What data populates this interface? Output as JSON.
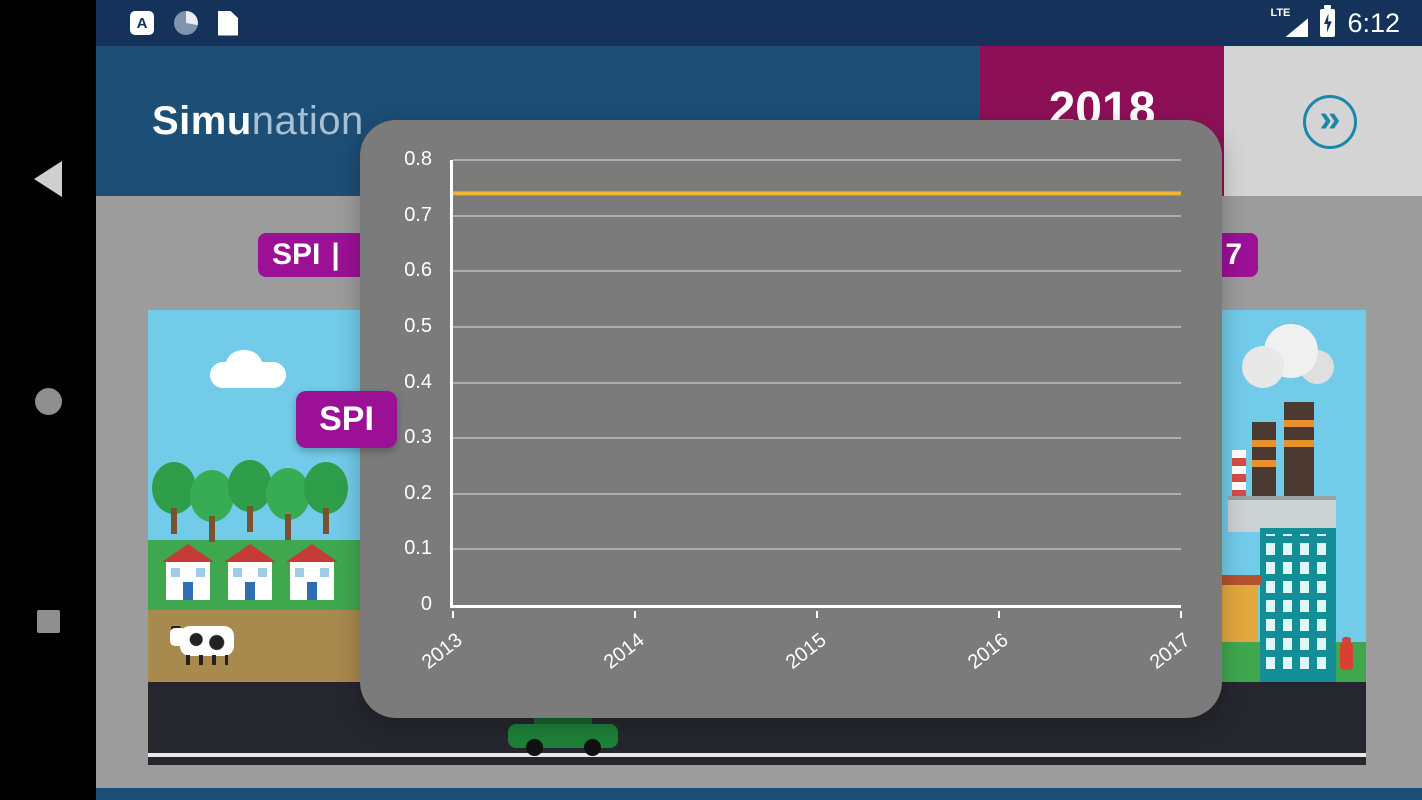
{
  "status_bar": {
    "time": "6:12",
    "network_label": "LTE",
    "a_icon_label": "A"
  },
  "header": {
    "app_title_bold": "Simu",
    "app_title_light": "nation",
    "year": "2018",
    "next_glyph": "»"
  },
  "badges": {
    "spi_left": "SPI",
    "spi_left_divider": "|",
    "right_partial": "7",
    "chart_label": "SPI"
  },
  "colors": {
    "primary_blue": "#1d4e76",
    "status_bar_blue": "#14325a",
    "magenta_year": "#8d1057",
    "purple_badge": "#9c1095",
    "teal_accent": "#1b87a8",
    "chart_line": "#f6b42c",
    "modal_gray": "#7b7b7b"
  },
  "chart_data": {
    "type": "line",
    "title": "",
    "xlabel": "",
    "ylabel": "",
    "x": [
      "2013",
      "2014",
      "2015",
      "2016",
      "2017"
    ],
    "series": [
      {
        "name": "SPI",
        "color": "#f6b42c",
        "values": [
          0.74,
          0.74,
          0.74,
          0.74,
          0.74
        ]
      }
    ],
    "ylim": [
      0,
      0.8
    ],
    "yticks": [
      0,
      0.1,
      0.2,
      0.3,
      0.4,
      0.5,
      0.6,
      0.7,
      0.8
    ],
    "grid": true,
    "legend_position": "none",
    "axis_color": "#ffffff",
    "background": "#7b7b7b"
  }
}
